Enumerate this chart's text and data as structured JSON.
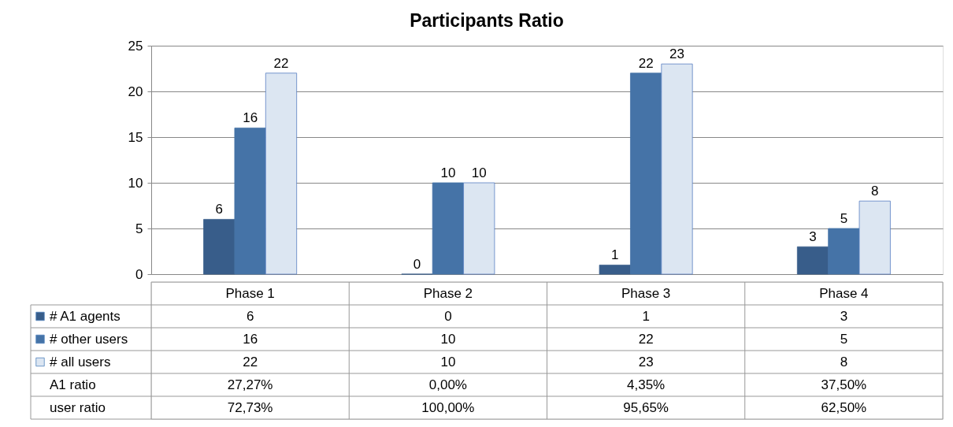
{
  "chart_data": {
    "type": "bar",
    "title": "Participants Ratio",
    "categories": [
      "Phase 1",
      "Phase 2",
      "Phase 3",
      "Phase 4"
    ],
    "series": [
      {
        "name": "# A1 agents",
        "color": "#385d8a",
        "values": [
          6,
          0,
          1,
          3
        ],
        "value_labels": [
          "6",
          "0",
          "1",
          "3"
        ]
      },
      {
        "name": "# other users",
        "color": "#4573a7",
        "values": [
          16,
          10,
          22,
          5
        ],
        "value_labels": [
          "16",
          "10",
          "22",
          "5"
        ]
      },
      {
        "name": "# all users",
        "color": "#dce6f2",
        "values": [
          22,
          10,
          23,
          8
        ],
        "value_labels": [
          "22",
          "10",
          "23",
          "8"
        ]
      }
    ],
    "ylim": [
      0,
      25
    ],
    "yticks": [
      0,
      5,
      10,
      15,
      20,
      25
    ],
    "grid": "y",
    "legend": "bottom",
    "annotations": [
      "6",
      "0",
      "1",
      "3",
      "16",
      "10",
      "22",
      "5",
      "22",
      "10",
      "23",
      "8",
      "A1 ratio",
      "27,27%",
      "0,00%",
      "4,35%",
      "37,50%",
      "user ratio",
      "72,73%",
      "100,00%",
      "95,65%",
      "62,50%"
    ]
  }
}
